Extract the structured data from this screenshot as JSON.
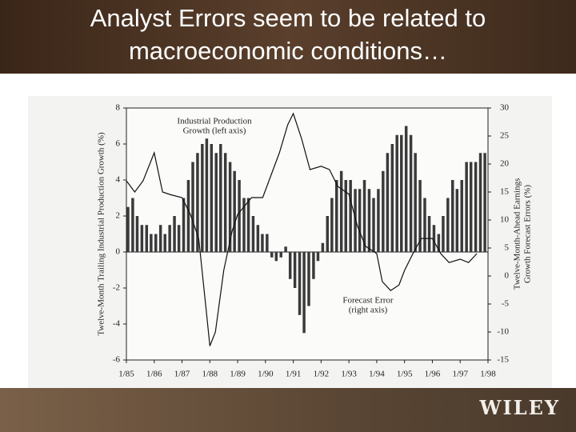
{
  "slide": {
    "title": "Analyst Errors seem to be related to macroeconomic conditions…",
    "logo": "WILEY"
  },
  "chart_data": {
    "type": "bar-line",
    "ylabel": "Twelve-Month Trailing Industrial Production Growth (%)",
    "y2label": [
      "Twelve-Month-Ahead Earnings",
      "Growth Forecast Errors (%)"
    ],
    "annotations": [
      {
        "lines": [
          "Industrial Production",
          "Growth (left axis)"
        ]
      },
      {
        "lines": [
          "Forecast Error",
          "(right axis)"
        ]
      }
    ],
    "xlim": [
      1985,
      1998
    ],
    "xticks": [
      {
        "value": 1985,
        "label": "1/85"
      },
      {
        "value": 1986,
        "label": "1/86"
      },
      {
        "value": 1987,
        "label": "1/87"
      },
      {
        "value": 1988,
        "label": "1/88"
      },
      {
        "value": 1989,
        "label": "1/89"
      },
      {
        "value": 1990,
        "label": "1/90"
      },
      {
        "value": 1991,
        "label": "1/91"
      },
      {
        "value": 1992,
        "label": "1/92"
      },
      {
        "value": 1993,
        "label": "1/93"
      },
      {
        "value": 1994,
        "label": "1/94"
      },
      {
        "value": 1995,
        "label": "1/95"
      },
      {
        "value": 1996,
        "label": "1/96"
      },
      {
        "value": 1997,
        "label": "1/97"
      },
      {
        "value": 1998,
        "label": "1/98"
      }
    ],
    "ylim": [
      -6,
      8
    ],
    "yticks": [
      -6,
      -4,
      -2,
      0,
      2,
      4,
      6,
      8
    ],
    "y2lim": [
      -15,
      30
    ],
    "y2ticks": [
      -15,
      -10,
      -5,
      0,
      5,
      10,
      15,
      20,
      25,
      30
    ],
    "series": [
      {
        "name": "Industrial Production Growth",
        "kind": "bar",
        "color": "#3a3a3a",
        "x": [
          1985,
          1985.17,
          1985.33,
          1985.5,
          1985.67,
          1985.83,
          1986,
          1986.17,
          1986.33,
          1986.5,
          1986.67,
          1986.83,
          1987,
          1987.17,
          1987.33,
          1987.5,
          1987.67,
          1987.83,
          1988,
          1988.17,
          1988.33,
          1988.5,
          1988.67,
          1988.83,
          1989,
          1989.17,
          1989.33,
          1989.5,
          1989.67,
          1989.83,
          1990,
          1990.17,
          1990.33,
          1990.5,
          1990.67,
          1990.83,
          1991,
          1991.17,
          1991.33,
          1991.5,
          1991.67,
          1991.83,
          1992,
          1992.17,
          1992.33,
          1992.5,
          1992.67,
          1992.83,
          1993,
          1993.17,
          1993.33,
          1993.5,
          1993.67,
          1993.83,
          1994,
          1994.17,
          1994.33,
          1994.5,
          1994.67,
          1994.83,
          1995,
          1995.17,
          1995.33,
          1995.5,
          1995.67,
          1995.83,
          1996,
          1996.17,
          1996.33,
          1996.5,
          1996.67,
          1996.83,
          1997,
          1997.17,
          1997.33,
          1997.5,
          1997.67,
          1997.83
        ],
        "values": [
          2.5,
          3,
          2,
          1.5,
          1.5,
          1,
          1,
          1.5,
          1,
          1.5,
          2,
          1.5,
          3,
          4,
          5,
          5.5,
          6,
          6.3,
          6,
          5.5,
          6,
          5.5,
          5,
          4.5,
          4,
          3,
          3,
          2,
          1.5,
          1,
          1,
          -0.3,
          -0.5,
          -0.3,
          0.3,
          -1.5,
          -2,
          -3.5,
          -4.5,
          -3,
          -1.5,
          -0.5,
          0.5,
          2,
          3,
          4,
          4.5,
          4,
          4,
          3.5,
          3.5,
          4,
          3.5,
          3,
          3.5,
          4.5,
          5.5,
          6,
          6.5,
          6.5,
          7,
          6.5,
          5.5,
          4,
          3,
          2,
          1.5,
          1,
          2,
          3,
          4,
          3.5,
          4,
          5,
          5,
          5,
          5.5,
          5.5
        ]
      },
      {
        "name": "Forecast Error",
        "kind": "line",
        "axis": "y2",
        "color": "#111111",
        "x": [
          1985,
          1985.3,
          1985.6,
          1986,
          1986.3,
          1986.6,
          1987,
          1987.3,
          1987.6,
          1987.9,
          1988,
          1988.2,
          1988.5,
          1988.8,
          1989,
          1989.5,
          1989.9,
          1990.2,
          1990.5,
          1990.8,
          1991,
          1991.3,
          1991.6,
          1992,
          1992.3,
          1992.6,
          1993,
          1993.3,
          1993.6,
          1994,
          1994.2,
          1994.5,
          1994.8,
          1995,
          1995.3,
          1995.6,
          1996,
          1996.3,
          1996.6,
          1997,
          1997.3,
          1997.6
        ],
        "values": [
          17,
          15,
          17,
          22,
          15,
          14.5,
          14,
          11,
          6.7,
          -7.6,
          -12.5,
          -10,
          1,
          8,
          11,
          14,
          14,
          18,
          22,
          27,
          29,
          24.5,
          19,
          19.6,
          19,
          16,
          14.6,
          9,
          5.3,
          4,
          -1,
          -2.6,
          -1.6,
          1,
          4,
          6.7,
          6.7,
          4,
          2.4,
          3,
          2.4,
          4
        ]
      }
    ]
  }
}
